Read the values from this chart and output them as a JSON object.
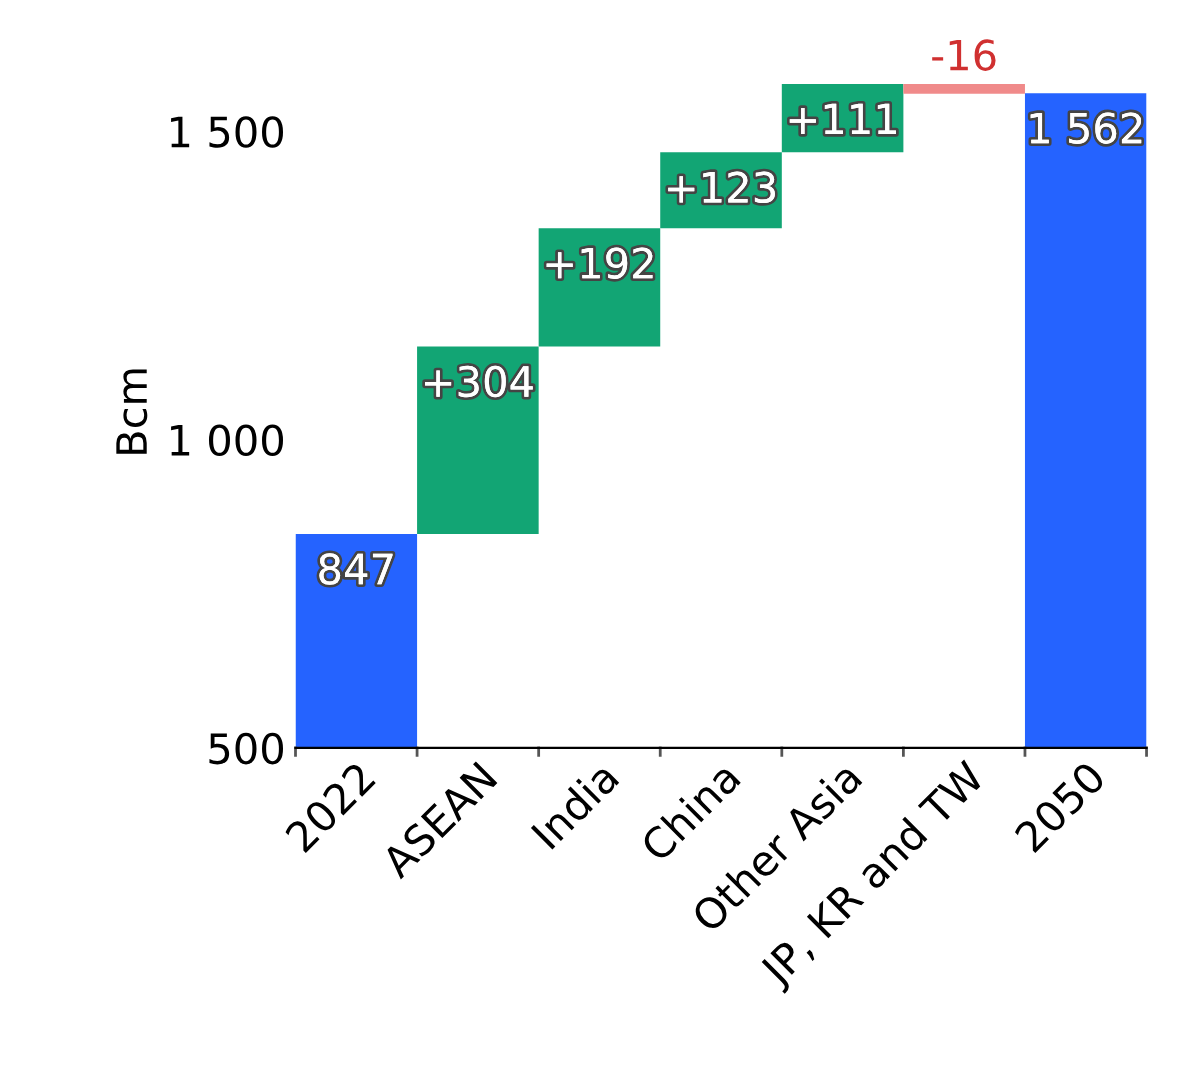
{
  "chart_data": {
    "type": "bar",
    "ylabel": "Bcm",
    "categories": [
      "2022",
      "ASEAN",
      "India",
      "China",
      "Other Asia",
      "JP, KR and TW",
      "2050"
    ],
    "values": [
      847,
      304,
      192,
      123,
      111,
      -16,
      1562
    ],
    "base": [
      null,
      847,
      1151,
      1343,
      1466,
      1577,
      null
    ],
    "colors": [
      "#2563ff",
      "#12a574",
      "#12a574",
      "#12a574",
      "#12a574",
      "#f08a8a",
      "#2563ff"
    ],
    "value_labels": [
      "847",
      "+304",
      "+192",
      "+123",
      "+111",
      "-16",
      "1 562"
    ],
    "ylim": [
      500,
      1590
    ],
    "yticks": [
      500,
      {
        "value": 1000,
        "label": "1 000"
      },
      {
        "value": 1500,
        "label": "1 500"
      }
    ],
    "grid": false,
    "legend": false
  }
}
